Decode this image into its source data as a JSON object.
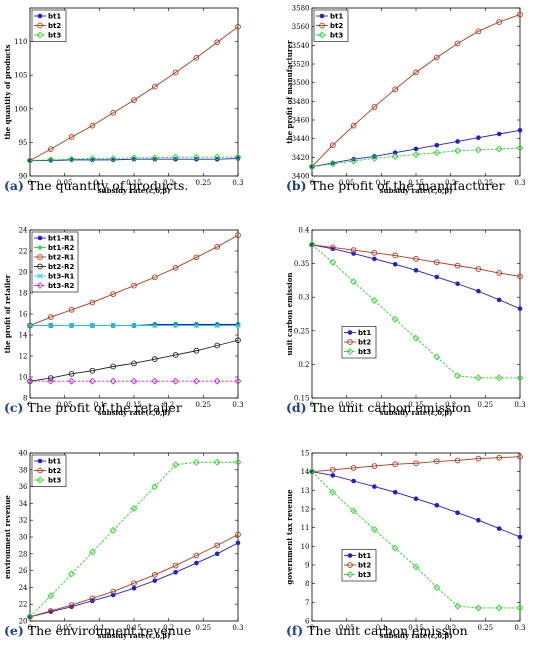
{
  "chart_data": [
    {
      "type": "line",
      "panel": "a",
      "caption_letter": "(a)",
      "caption_text": " The quantity of products.",
      "xlabel": "subsidy rate(ε,δ,β)",
      "ylabel": "the quantity of products",
      "xlim": [
        0,
        0.3
      ],
      "ylim": [
        90,
        115
      ],
      "xticks": [
        0,
        0.05,
        0.1,
        0.15,
        0.2,
        0.25,
        0.3
      ],
      "xticklabels": [
        "0",
        "0.05",
        "0.1",
        "0.15",
        "0.2",
        "0.25",
        "0.3"
      ],
      "yticks": [
        90,
        95,
        100,
        105,
        110
      ],
      "yticklabels": [
        "90",
        "95",
        "100",
        "105",
        "110"
      ],
      "legend_position": "top-left",
      "x": [
        0,
        0.03,
        0.06,
        0.09,
        0.12,
        0.15,
        0.18,
        0.21,
        0.24,
        0.27,
        0.3
      ],
      "series": [
        {
          "name": "bt1",
          "color": "#1f1fd6",
          "marker": "dot",
          "values": [
            92.3,
            92.3,
            92.4,
            92.4,
            92.4,
            92.5,
            92.5,
            92.5,
            92.5,
            92.5,
            92.6
          ]
        },
        {
          "name": "bt2",
          "color": "#b03a1e",
          "marker": "circle",
          "values": [
            92.3,
            94.0,
            95.8,
            97.5,
            99.4,
            101.3,
            103.3,
            105.4,
            107.6,
            109.9,
            112.2
          ]
        },
        {
          "name": "bt3",
          "color": "#2bd42b",
          "marker": "diamond",
          "values": [
            92.3,
            92.4,
            92.5,
            92.6,
            92.6,
            92.7,
            92.7,
            92.8,
            92.8,
            92.8,
            92.8
          ]
        }
      ]
    },
    {
      "type": "line",
      "panel": "b",
      "caption_letter": "(b)",
      "caption_text": " The profit of the manufacturer",
      "xlabel": "subsidy rate(ε,δ,β)",
      "ylabel": "the profit of manufacturer",
      "xlim": [
        0,
        0.3
      ],
      "ylim": [
        3400,
        3580
      ],
      "xticks": [
        0,
        0.05,
        0.1,
        0.15,
        0.2,
        0.25,
        0.3
      ],
      "xticklabels": [
        "0",
        "0.05",
        "0.1",
        "0.15",
        "0.2",
        "0.25",
        "0.3"
      ],
      "yticks": [
        3400,
        3420,
        3440,
        3460,
        3480,
        3500,
        3520,
        3540,
        3560,
        3580
      ],
      "yticklabels": [
        "3400",
        "3420",
        "3440",
        "3460",
        "3480",
        "3500",
        "3520",
        "3540",
        "3560",
        "3580"
      ],
      "legend_position": "top-left",
      "x": [
        0,
        0.03,
        0.06,
        0.09,
        0.12,
        0.15,
        0.18,
        0.21,
        0.24,
        0.27,
        0.3
      ],
      "series": [
        {
          "name": "bt1",
          "color": "#1f1fd6",
          "marker": "dot",
          "values": [
            3410,
            3414,
            3418,
            3421,
            3425,
            3429,
            3433,
            3437,
            3441,
            3445,
            3449
          ]
        },
        {
          "name": "bt2",
          "color": "#b03a1e",
          "marker": "circle",
          "values": [
            3410,
            3433,
            3454,
            3474,
            3493,
            3511,
            3527,
            3542,
            3555,
            3565,
            3573
          ]
        },
        {
          "name": "bt3",
          "color": "#2bd42b",
          "marker": "diamond",
          "values": [
            3410,
            3413,
            3416,
            3419,
            3421,
            3423,
            3425,
            3427,
            3428,
            3429,
            3430
          ]
        }
      ]
    },
    {
      "type": "line",
      "panel": "c",
      "caption_letter": "(c)",
      "caption_text": " The profit of the retailer",
      "xlabel": "subsidy rate(ε,δ,β)",
      "ylabel": "the profit of retailer",
      "xlim": [
        0,
        0.3
      ],
      "ylim": [
        8,
        24
      ],
      "xticks": [
        0,
        0.05,
        0.1,
        0.15,
        0.2,
        0.25,
        0.3
      ],
      "xticklabels": [
        "0",
        "0.05",
        "0.1",
        "0.15",
        "0.2",
        "0.25",
        "0.3"
      ],
      "yticks": [
        8,
        10,
        12,
        14,
        16,
        18,
        20,
        22,
        24
      ],
      "yticklabels": [
        "8",
        "10",
        "12",
        "14",
        "16",
        "18",
        "20",
        "22",
        "24"
      ],
      "legend_position": "top-left",
      "x": [
        0,
        0.03,
        0.06,
        0.09,
        0.12,
        0.15,
        0.18,
        0.21,
        0.24,
        0.27,
        0.3
      ],
      "series": [
        {
          "name": "bt1-R1",
          "color": "#1f1fd6",
          "marker": "dot",
          "values": [
            14.9,
            14.9,
            14.9,
            14.9,
            14.9,
            14.9,
            15.0,
            15.0,
            15.0,
            15.0,
            15.0
          ]
        },
        {
          "name": "bt1-R2",
          "color": "#2bd42b",
          "marker": "star",
          "values": [
            14.9,
            14.9,
            14.9,
            14.9,
            14.9,
            14.9,
            14.9,
            14.9,
            14.9,
            14.9,
            14.9
          ]
        },
        {
          "name": "bt2-R1",
          "color": "#b03a1e",
          "marker": "circle",
          "values": [
            14.9,
            15.7,
            16.4,
            17.1,
            17.9,
            18.7,
            19.5,
            20.4,
            21.4,
            22.4,
            23.5
          ]
        },
        {
          "name": "bt2-R2",
          "color": "#222222",
          "marker": "circle",
          "values": [
            9.6,
            9.9,
            10.3,
            10.6,
            11.0,
            11.3,
            11.7,
            12.1,
            12.5,
            13.0,
            13.5
          ]
        },
        {
          "name": "bt3-R1",
          "color": "#1ec8e8",
          "marker": "x",
          "values": [
            14.9,
            14.9,
            14.9,
            14.9,
            14.9,
            14.9,
            14.9,
            14.9,
            14.9,
            14.9,
            14.9
          ]
        },
        {
          "name": "bt3-R2",
          "color": "#c030c8",
          "marker": "diamond",
          "values": [
            9.6,
            9.6,
            9.6,
            9.6,
            9.6,
            9.6,
            9.6,
            9.6,
            9.6,
            9.6,
            9.6
          ]
        }
      ]
    },
    {
      "type": "line",
      "panel": "d",
      "caption_letter": "(d)",
      "caption_text": " The unit carbon emission",
      "xlabel": "subsidy rate(ε,δ,β)",
      "ylabel": "unit carbon emission",
      "xlim": [
        0,
        0.3
      ],
      "ylim": [
        0.15,
        0.4
      ],
      "xticks": [
        0,
        0.05,
        0.1,
        0.15,
        0.2,
        0.25,
        0.3
      ],
      "xticklabels": [
        "0",
        "0.05",
        "0.1",
        "0.15",
        "0.2",
        "0.25",
        "0.3"
      ],
      "yticks": [
        0.15,
        0.2,
        0.25,
        0.3,
        0.35,
        0.4
      ],
      "yticklabels": [
        "0.15",
        "0.2",
        "0.25",
        "0.3",
        "0.35",
        "0.4"
      ],
      "legend_position": "bottom-left",
      "x": [
        0,
        0.03,
        0.06,
        0.09,
        0.12,
        0.15,
        0.18,
        0.21,
        0.24,
        0.27,
        0.3
      ],
      "series": [
        {
          "name": "bt1",
          "color": "#1f1fd6",
          "marker": "dot",
          "values": [
            0.378,
            0.372,
            0.365,
            0.357,
            0.349,
            0.34,
            0.33,
            0.32,
            0.309,
            0.296,
            0.283
          ]
        },
        {
          "name": "bt2",
          "color": "#b03a1e",
          "marker": "circle",
          "values": [
            0.378,
            0.374,
            0.37,
            0.366,
            0.362,
            0.357,
            0.352,
            0.347,
            0.342,
            0.336,
            0.331
          ]
        },
        {
          "name": "bt3",
          "color": "#2bd42b",
          "marker": "diamond",
          "values": [
            0.378,
            0.352,
            0.323,
            0.295,
            0.267,
            0.239,
            0.211,
            0.183,
            0.18,
            0.18,
            0.18
          ]
        }
      ]
    },
    {
      "type": "line",
      "panel": "e",
      "caption_letter": "(e)",
      "caption_text": " The environment revenue",
      "xlabel": "subsidy rate(ε,δ,β)",
      "ylabel": "environment revenue",
      "xlim": [
        0,
        0.3
      ],
      "ylim": [
        20,
        40
      ],
      "xticks": [
        0,
        0.05,
        0.1,
        0.15,
        0.2,
        0.25,
        0.3
      ],
      "xticklabels": [
        "0",
        "0.05",
        "0.1",
        "0.15",
        "0.2",
        "0.25",
        "0.3"
      ],
      "yticks": [
        20,
        22,
        24,
        26,
        28,
        30,
        32,
        34,
        36,
        38,
        40
      ],
      "yticklabels": [
        "20",
        "22",
        "24",
        "26",
        "28",
        "30",
        "32",
        "34",
        "36",
        "38",
        "40"
      ],
      "legend_position": "top-left",
      "x": [
        0,
        0.03,
        0.06,
        0.09,
        0.12,
        0.15,
        0.18,
        0.21,
        0.24,
        0.27,
        0.3
      ],
      "series": [
        {
          "name": "bt1",
          "color": "#1f1fd6",
          "marker": "dot",
          "values": [
            20.5,
            21.1,
            21.7,
            22.4,
            23.1,
            23.9,
            24.8,
            25.8,
            26.9,
            28.0,
            29.3
          ]
        },
        {
          "name": "bt2",
          "color": "#b03a1e",
          "marker": "circle",
          "values": [
            20.5,
            21.2,
            21.9,
            22.7,
            23.5,
            24.5,
            25.5,
            26.6,
            27.8,
            29.0,
            30.3
          ]
        },
        {
          "name": "bt3",
          "color": "#2bd42b",
          "marker": "diamond",
          "values": [
            20.5,
            23.0,
            25.6,
            28.2,
            30.8,
            33.4,
            36.0,
            38.6,
            38.9,
            38.9,
            38.9
          ]
        }
      ]
    },
    {
      "type": "line",
      "panel": "f",
      "caption_letter": "(f)",
      "caption_text": " The unit carbon emission",
      "xlabel": "subsidy rate(ε,δ,β)",
      "ylabel": "government tax revenue",
      "xlim": [
        0,
        0.3
      ],
      "ylim": [
        6,
        15
      ],
      "xticks": [
        0,
        0.05,
        0.1,
        0.15,
        0.2,
        0.25,
        0.3
      ],
      "xticklabels": [
        "0",
        "0.05",
        "0.1",
        "0.15",
        "0.2",
        "0.25",
        "0.3"
      ],
      "yticks": [
        6,
        7,
        8,
        9,
        10,
        11,
        12,
        13,
        14,
        15
      ],
      "yticklabels": [
        "6",
        "7",
        "8",
        "9",
        "10",
        "11",
        "12",
        "13",
        "14",
        "15"
      ],
      "legend_position": "bottom-left",
      "x": [
        0,
        0.03,
        0.06,
        0.09,
        0.12,
        0.15,
        0.18,
        0.21,
        0.24,
        0.27,
        0.3
      ],
      "series": [
        {
          "name": "bt1",
          "color": "#1f1fd6",
          "marker": "dot",
          "values": [
            14.0,
            13.8,
            13.5,
            13.2,
            12.9,
            12.55,
            12.2,
            11.8,
            11.4,
            10.95,
            10.5
          ]
        },
        {
          "name": "bt2",
          "color": "#b03a1e",
          "marker": "circle",
          "values": [
            14.0,
            14.1,
            14.2,
            14.3,
            14.4,
            14.45,
            14.55,
            14.6,
            14.7,
            14.75,
            14.8
          ]
        },
        {
          "name": "bt3",
          "color": "#2bd42b",
          "marker": "diamond",
          "values": [
            14.0,
            12.9,
            11.9,
            10.9,
            9.9,
            8.9,
            7.8,
            6.8,
            6.7,
            6.7,
            6.7
          ]
        }
      ]
    }
  ]
}
